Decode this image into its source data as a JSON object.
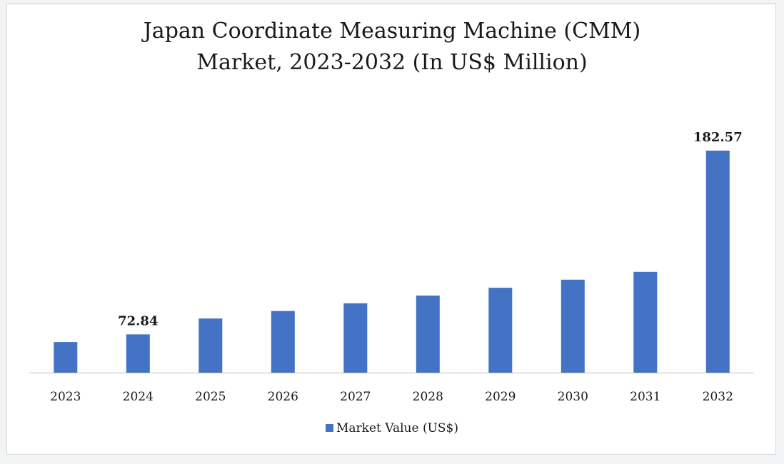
{
  "chart_data": {
    "type": "bar",
    "title_lines": [
      "Japan Coordinate Measuring Machine (CMM)",
      "Market, 2023-2032 (In US$ Million)"
    ],
    "categories": [
      "2023",
      "2024",
      "2025",
      "2026",
      "2027",
      "2028",
      "2029",
      "2030",
      "2031",
      "2032"
    ],
    "series": [
      {
        "name": "Market Value (US$)",
        "color": "#4472c4",
        "values": [
          68.3,
          72.84,
          82.3,
          86.8,
          91.4,
          96.0,
          100.7,
          105.5,
          110.2,
          182.57
        ]
      }
    ],
    "data_labels": {
      "1": "72.84",
      "9": "182.57"
    },
    "grid": false,
    "legend_position": "bottom"
  }
}
